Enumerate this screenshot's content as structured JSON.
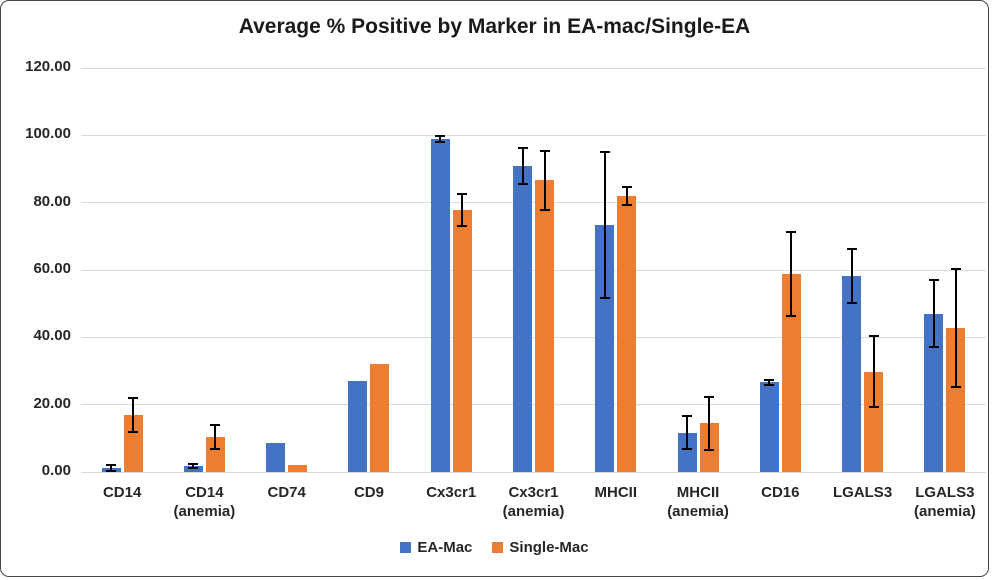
{
  "chart_data": {
    "type": "bar",
    "title": "Average % Positive by Marker in EA-mac/Single-EA",
    "categories": [
      "CD14",
      "CD14 (anemia)",
      "CD74",
      "CD9",
      "Cx3cr1",
      "Cx3cr1 (anemia)",
      "MHCII",
      "MHCII (anemia)",
      "CD16",
      "LGALS3",
      "LGALS3 (anemia)"
    ],
    "series": [
      {
        "name": "EA-Mac",
        "color": "#4472C4",
        "values": [
          1.3,
          1.8,
          8.7,
          26.9,
          99.0,
          90.9,
          73.4,
          11.7,
          26.6,
          58.2,
          47.0
        ],
        "errors": [
          0.9,
          0.5,
          0,
          0,
          0.9,
          5.3,
          21.7,
          4.9,
          0.8,
          8.0,
          10.0
        ]
      },
      {
        "name": "Single-Mac",
        "color": "#ED7D31",
        "values": [
          17.0,
          10.4,
          2.0,
          32.1,
          77.8,
          86.6,
          82.0,
          14.5,
          58.8,
          29.8,
          42.8
        ],
        "errors": [
          5.0,
          3.6,
          0,
          0,
          4.7,
          8.8,
          2.6,
          7.9,
          12.4,
          10.5,
          17.5
        ]
      }
    ],
    "ylim": [
      0,
      120
    ],
    "ytick_step": 20,
    "ytick_labels": [
      "0.00",
      "20.00",
      "40.00",
      "60.00",
      "80.00",
      "100.00",
      "120.00"
    ],
    "xlabel": "",
    "ylabel": "",
    "grid": true,
    "legend_position": "bottom",
    "error_bars": true,
    "colors": {
      "grid": "#D9D9D9",
      "text": "#262626",
      "title": "#1A1A1A",
      "border": "#454545",
      "background": "#FFFFFF",
      "error_bar": "#000000"
    }
  }
}
